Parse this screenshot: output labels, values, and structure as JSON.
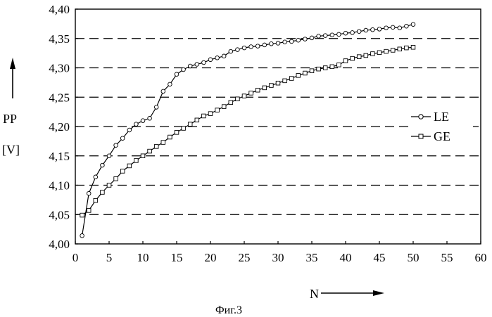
{
  "chart_data": {
    "type": "line",
    "caption": "Фиг.3",
    "xlabel": "N",
    "ylabel_line1": "PP",
    "ylabel_line2": "[V]",
    "xlim": [
      0,
      60
    ],
    "ylim": [
      4.0,
      4.4
    ],
    "x_ticks": [
      "0",
      "5",
      "10",
      "15",
      "20",
      "25",
      "30",
      "35",
      "40",
      "45",
      "50",
      "55",
      "60"
    ],
    "y_ticks": [
      "4,00",
      "4,05",
      "4,10",
      "4,15",
      "4,20",
      "4,25",
      "4,30",
      "4,35",
      "4,40"
    ],
    "grid": "horizontal dashed",
    "legend": "right",
    "series": [
      {
        "name": "LE",
        "marker": "circle",
        "x": [
          1,
          2,
          3,
          4,
          5,
          6,
          7,
          8,
          9,
          10,
          11,
          12,
          13,
          14,
          15,
          16,
          17,
          18,
          19,
          20,
          21,
          22,
          23,
          24,
          25,
          26,
          27,
          28,
          29,
          30,
          31,
          32,
          33,
          34,
          35,
          36,
          37,
          38,
          39,
          40,
          41,
          42,
          43,
          44,
          45,
          46,
          47,
          48,
          49,
          50
        ],
        "values": [
          4.014,
          4.086,
          4.114,
          4.134,
          4.15,
          4.168,
          4.18,
          4.194,
          4.204,
          4.21,
          4.214,
          4.233,
          4.26,
          4.272,
          4.289,
          4.297,
          4.303,
          4.306,
          4.309,
          4.314,
          4.317,
          4.32,
          4.328,
          4.331,
          4.334,
          4.336,
          4.337,
          4.339,
          4.341,
          4.342,
          4.344,
          4.345,
          4.347,
          4.349,
          4.351,
          4.354,
          4.355,
          4.356,
          4.357,
          4.359,
          4.36,
          4.362,
          4.364,
          4.365,
          4.366,
          4.368,
          4.369,
          4.368,
          4.371,
          4.374
        ]
      },
      {
        "name": "GE",
        "marker": "square",
        "x": [
          1,
          2,
          3,
          4,
          5,
          6,
          7,
          8,
          9,
          10,
          11,
          12,
          13,
          14,
          15,
          16,
          17,
          18,
          19,
          20,
          21,
          22,
          23,
          24,
          25,
          26,
          27,
          28,
          29,
          30,
          31,
          32,
          33,
          34,
          35,
          36,
          37,
          38,
          39,
          40,
          41,
          42,
          43,
          44,
          45,
          46,
          47,
          48,
          49,
          50
        ],
        "values": [
          4.049,
          4.057,
          4.074,
          4.088,
          4.1,
          4.111,
          4.124,
          4.133,
          4.142,
          4.15,
          4.158,
          4.166,
          4.173,
          4.182,
          4.19,
          4.197,
          4.204,
          4.211,
          4.218,
          4.222,
          4.228,
          4.234,
          4.241,
          4.247,
          4.252,
          4.257,
          4.262,
          4.266,
          4.27,
          4.274,
          4.278,
          4.282,
          4.287,
          4.291,
          4.295,
          4.298,
          4.3,
          4.302,
          4.305,
          4.312,
          4.316,
          4.319,
          4.321,
          4.324,
          4.326,
          4.328,
          4.33,
          4.332,
          4.334,
          4.335
        ]
      }
    ]
  }
}
